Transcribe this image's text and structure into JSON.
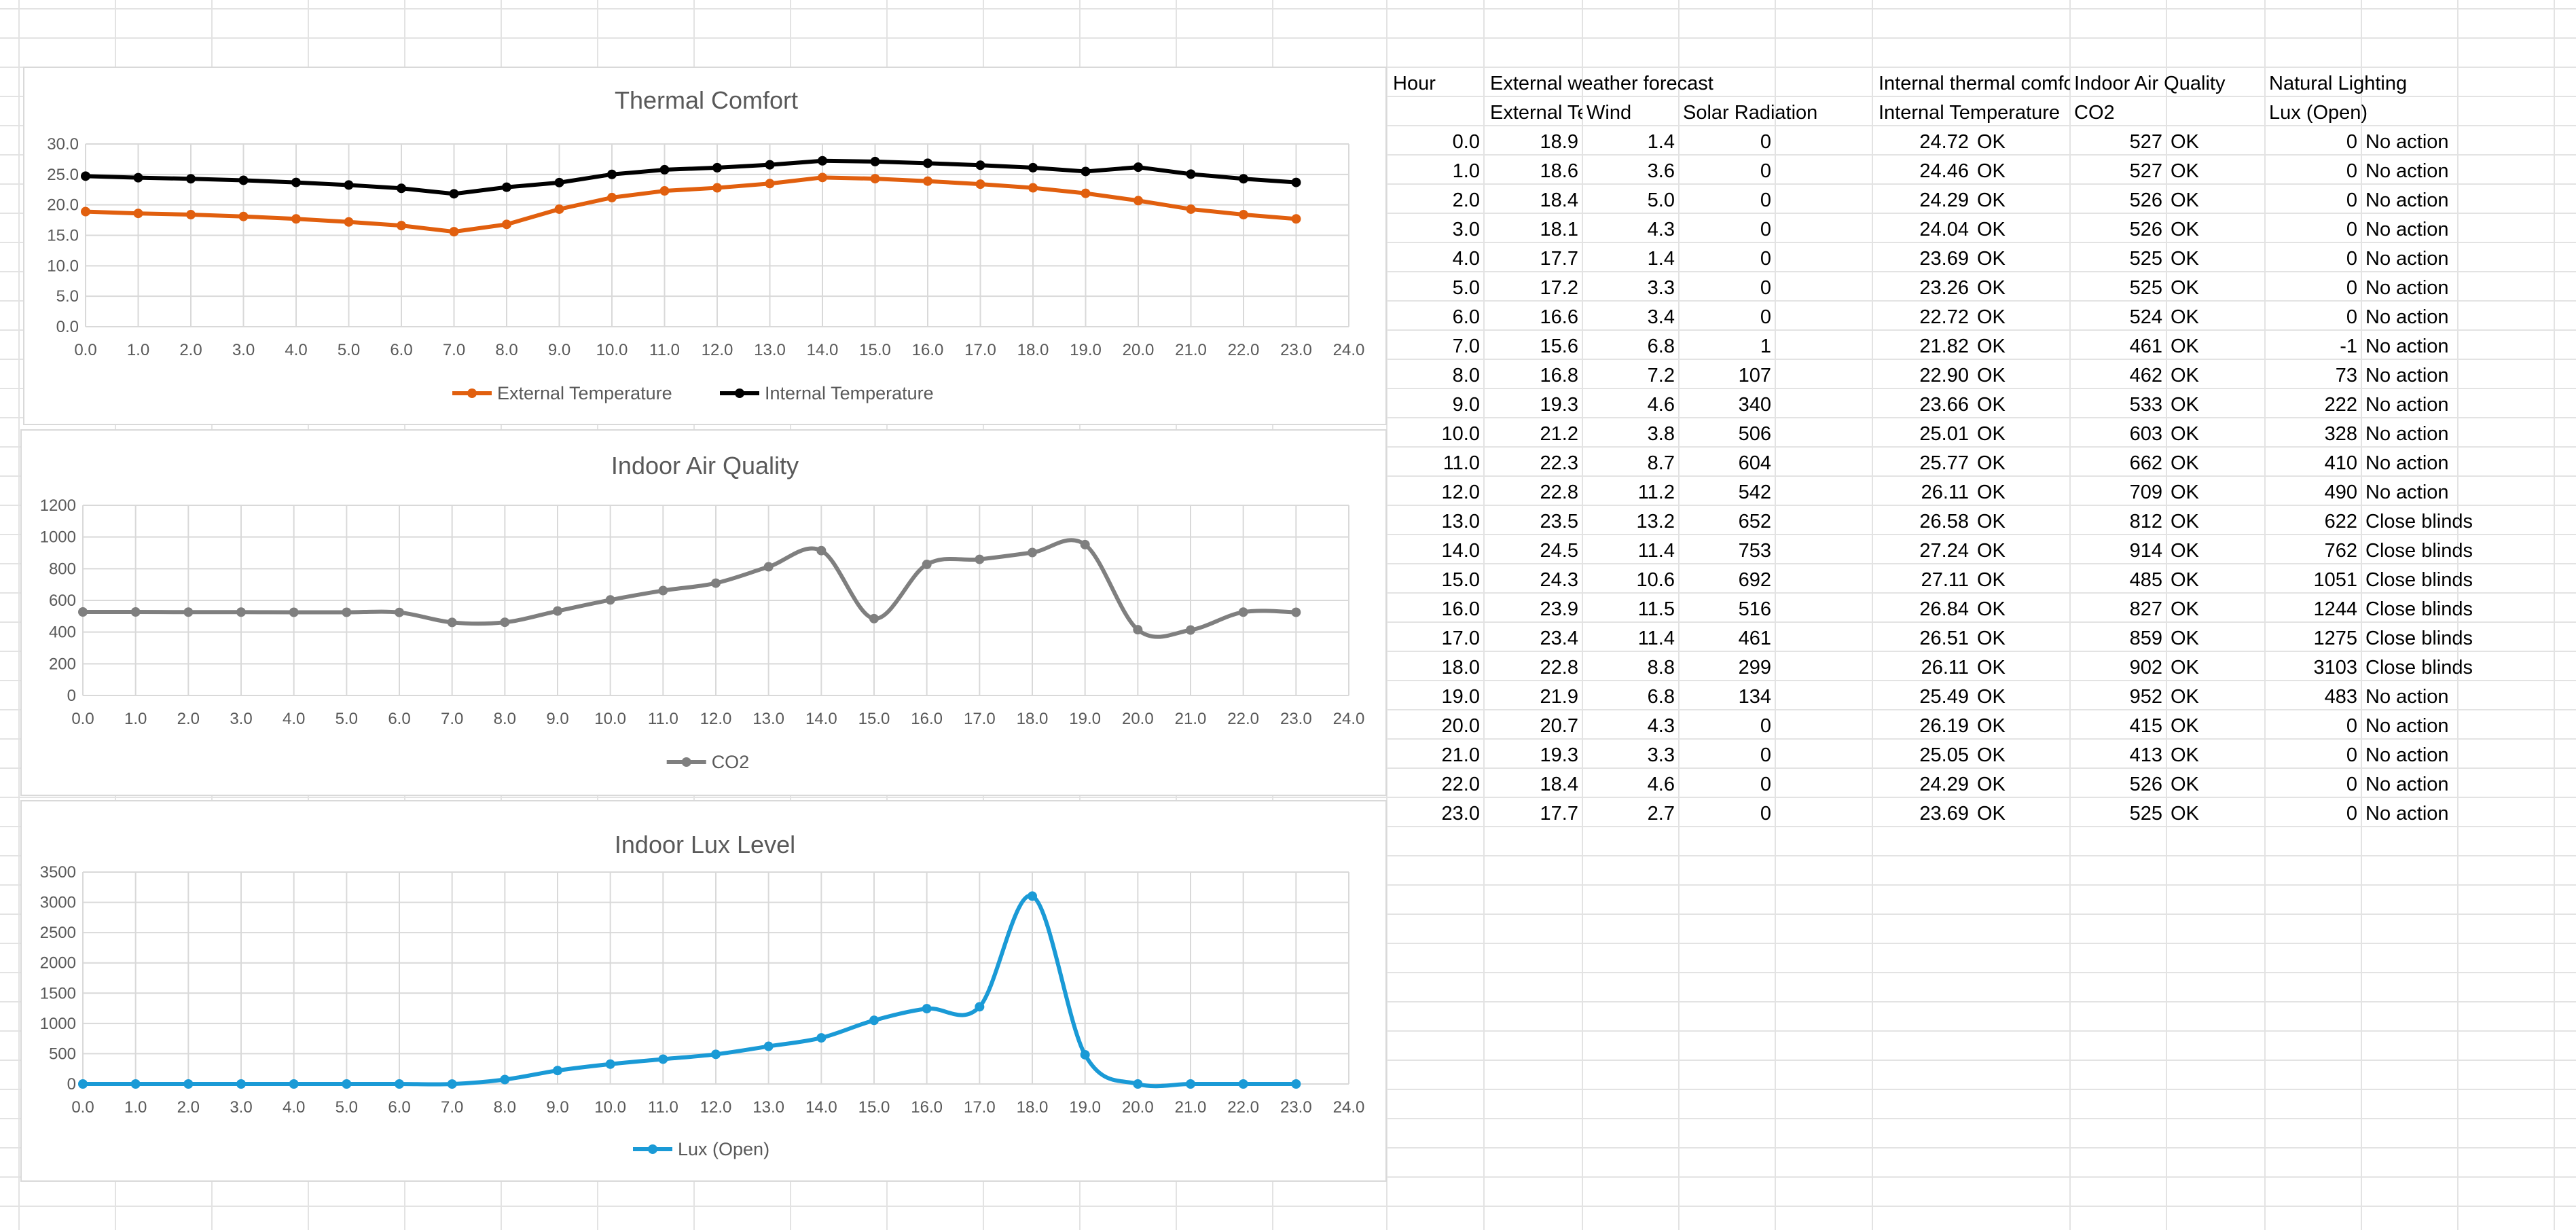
{
  "colors": {
    "external": "#e15f0e",
    "internal": "#000000",
    "co2": "#7f7f7f",
    "lux": "#1a9ad6",
    "gridline": "#d9d9d9"
  },
  "charts": {
    "thermal": {
      "title": "Thermal Comfort",
      "legend": [
        "External Temperature",
        "Internal Temperature"
      ]
    },
    "co2": {
      "title": "Indoor Air Quality",
      "legend": [
        "CO2"
      ]
    },
    "lux": {
      "title": "Indoor Lux Level",
      "legend": [
        "Lux (Open)"
      ]
    }
  },
  "chart_data": [
    {
      "type": "line",
      "title": "Thermal Comfort",
      "x": [
        0,
        1,
        2,
        3,
        4,
        5,
        6,
        7,
        8,
        9,
        10,
        11,
        12,
        13,
        14,
        15,
        16,
        17,
        18,
        19,
        20,
        21,
        22,
        23
      ],
      "x_ticks": [
        "0.0",
        "1.0",
        "2.0",
        "3.0",
        "4.0",
        "5.0",
        "6.0",
        "7.0",
        "8.0",
        "9.0",
        "10.0",
        "11.0",
        "12.0",
        "13.0",
        "14.0",
        "15.0",
        "16.0",
        "17.0",
        "18.0",
        "19.0",
        "20.0",
        "21.0",
        "22.0",
        "23.0",
        "24.0"
      ],
      "y_ticks": [
        "0.0",
        "5.0",
        "10.0",
        "15.0",
        "20.0",
        "25.0",
        "30.0"
      ],
      "xlim": [
        0,
        24
      ],
      "ylim": [
        0,
        30
      ],
      "smooth": false,
      "series": [
        {
          "name": "External Temperature",
          "values": [
            18.9,
            18.6,
            18.4,
            18.1,
            17.7,
            17.2,
            16.6,
            15.6,
            16.8,
            19.3,
            21.2,
            22.3,
            22.8,
            23.5,
            24.5,
            24.3,
            23.9,
            23.4,
            22.8,
            21.9,
            20.7,
            19.3,
            18.4,
            17.7
          ]
        },
        {
          "name": "Internal Temperature",
          "values": [
            24.72,
            24.46,
            24.29,
            24.04,
            23.69,
            23.26,
            22.72,
            21.82,
            22.9,
            23.66,
            25.01,
            25.77,
            26.11,
            26.58,
            27.24,
            27.11,
            26.84,
            26.51,
            26.11,
            25.49,
            26.19,
            25.05,
            24.29,
            23.69
          ]
        }
      ]
    },
    {
      "type": "line",
      "title": "Indoor Air Quality",
      "x": [
        0,
        1,
        2,
        3,
        4,
        5,
        6,
        7,
        8,
        9,
        10,
        11,
        12,
        13,
        14,
        15,
        16,
        17,
        18,
        19,
        20,
        21,
        22,
        23
      ],
      "x_ticks": [
        "0.0",
        "1.0",
        "2.0",
        "3.0",
        "4.0",
        "5.0",
        "6.0",
        "7.0",
        "8.0",
        "9.0",
        "10.0",
        "11.0",
        "12.0",
        "13.0",
        "14.0",
        "15.0",
        "16.0",
        "17.0",
        "18.0",
        "19.0",
        "20.0",
        "21.0",
        "22.0",
        "23.0",
        "24.0"
      ],
      "y_ticks": [
        "0",
        "200",
        "400",
        "600",
        "800",
        "1000",
        "1200"
      ],
      "xlim": [
        0,
        24
      ],
      "ylim": [
        0,
        1200
      ],
      "smooth": true,
      "series": [
        {
          "name": "CO2",
          "values": [
            527,
            527,
            526,
            526,
            525,
            525,
            524,
            461,
            462,
            533,
            603,
            662,
            709,
            812,
            914,
            485,
            827,
            859,
            902,
            952,
            415,
            413,
            526,
            525
          ]
        }
      ]
    },
    {
      "type": "line",
      "title": "Indoor Lux Level",
      "x": [
        0,
        1,
        2,
        3,
        4,
        5,
        6,
        7,
        8,
        9,
        10,
        11,
        12,
        13,
        14,
        15,
        16,
        17,
        18,
        19,
        20,
        21,
        22,
        23
      ],
      "x_ticks": [
        "0.0",
        "1.0",
        "2.0",
        "3.0",
        "4.0",
        "5.0",
        "6.0",
        "7.0",
        "8.0",
        "9.0",
        "10.0",
        "11.0",
        "12.0",
        "13.0",
        "14.0",
        "15.0",
        "16.0",
        "17.0",
        "18.0",
        "19.0",
        "20.0",
        "21.0",
        "22.0",
        "23.0",
        "24.0"
      ],
      "y_ticks": [
        "0",
        "500",
        "1000",
        "1500",
        "2000",
        "2500",
        "3000",
        "3500"
      ],
      "xlim": [
        0,
        24
      ],
      "ylim": [
        0,
        3500
      ],
      "smooth": true,
      "series": [
        {
          "name": "Lux (Open)",
          "values": [
            0,
            0,
            0,
            0,
            0,
            0,
            0,
            -1,
            73,
            222,
            328,
            410,
            490,
            622,
            762,
            1051,
            1244,
            1275,
            3103,
            483,
            0,
            0,
            0,
            0
          ]
        }
      ]
    }
  ],
  "sheet": {
    "header1": {
      "hour": "Hour",
      "external": "External weather forecast",
      "internal": "Internal thermal comfort",
      "air": "Indoor Air Quality",
      "lighting": "Natural Lighting"
    },
    "header2": {
      "ext_temp": "External Temperature",
      "wind": "Wind",
      "solar": "Solar Radiation",
      "int_temp": "Internal Temperature",
      "co2": "CO2",
      "lux": "Lux (Open)"
    },
    "rows": [
      {
        "hour": "0.0",
        "ext": "18.9",
        "wind": "1.4",
        "solar": "0",
        "int": "24.72",
        "int_status": "OK",
        "co2": "527",
        "co2_status": "OK",
        "lux": "0",
        "action": "No action"
      },
      {
        "hour": "1.0",
        "ext": "18.6",
        "wind": "3.6",
        "solar": "0",
        "int": "24.46",
        "int_status": "OK",
        "co2": "527",
        "co2_status": "OK",
        "lux": "0",
        "action": "No action"
      },
      {
        "hour": "2.0",
        "ext": "18.4",
        "wind": "5.0",
        "solar": "0",
        "int": "24.29",
        "int_status": "OK",
        "co2": "526",
        "co2_status": "OK",
        "lux": "0",
        "action": "No action"
      },
      {
        "hour": "3.0",
        "ext": "18.1",
        "wind": "4.3",
        "solar": "0",
        "int": "24.04",
        "int_status": "OK",
        "co2": "526",
        "co2_status": "OK",
        "lux": "0",
        "action": "No action"
      },
      {
        "hour": "4.0",
        "ext": "17.7",
        "wind": "1.4",
        "solar": "0",
        "int": "23.69",
        "int_status": "OK",
        "co2": "525",
        "co2_status": "OK",
        "lux": "0",
        "action": "No action"
      },
      {
        "hour": "5.0",
        "ext": "17.2",
        "wind": "3.3",
        "solar": "0",
        "int": "23.26",
        "int_status": "OK",
        "co2": "525",
        "co2_status": "OK",
        "lux": "0",
        "action": "No action"
      },
      {
        "hour": "6.0",
        "ext": "16.6",
        "wind": "3.4",
        "solar": "0",
        "int": "22.72",
        "int_status": "OK",
        "co2": "524",
        "co2_status": "OK",
        "lux": "0",
        "action": "No action"
      },
      {
        "hour": "7.0",
        "ext": "15.6",
        "wind": "6.8",
        "solar": "1",
        "int": "21.82",
        "int_status": "OK",
        "co2": "461",
        "co2_status": "OK",
        "lux": "-1",
        "action": "No action"
      },
      {
        "hour": "8.0",
        "ext": "16.8",
        "wind": "7.2",
        "solar": "107",
        "int": "22.90",
        "int_status": "OK",
        "co2": "462",
        "co2_status": "OK",
        "lux": "73",
        "action": "No action"
      },
      {
        "hour": "9.0",
        "ext": "19.3",
        "wind": "4.6",
        "solar": "340",
        "int": "23.66",
        "int_status": "OK",
        "co2": "533",
        "co2_status": "OK",
        "lux": "222",
        "action": "No action"
      },
      {
        "hour": "10.0",
        "ext": "21.2",
        "wind": "3.8",
        "solar": "506",
        "int": "25.01",
        "int_status": "OK",
        "co2": "603",
        "co2_status": "OK",
        "lux": "328",
        "action": "No action"
      },
      {
        "hour": "11.0",
        "ext": "22.3",
        "wind": "8.7",
        "solar": "604",
        "int": "25.77",
        "int_status": "OK",
        "co2": "662",
        "co2_status": "OK",
        "lux": "410",
        "action": "No action"
      },
      {
        "hour": "12.0",
        "ext": "22.8",
        "wind": "11.2",
        "solar": "542",
        "int": "26.11",
        "int_status": "OK",
        "co2": "709",
        "co2_status": "OK",
        "lux": "490",
        "action": "No action"
      },
      {
        "hour": "13.0",
        "ext": "23.5",
        "wind": "13.2",
        "solar": "652",
        "int": "26.58",
        "int_status": "OK",
        "co2": "812",
        "co2_status": "OK",
        "lux": "622",
        "action": "Close blinds"
      },
      {
        "hour": "14.0",
        "ext": "24.5",
        "wind": "11.4",
        "solar": "753",
        "int": "27.24",
        "int_status": "OK",
        "co2": "914",
        "co2_status": "OK",
        "lux": "762",
        "action": "Close blinds"
      },
      {
        "hour": "15.0",
        "ext": "24.3",
        "wind": "10.6",
        "solar": "692",
        "int": "27.11",
        "int_status": "OK",
        "co2": "485",
        "co2_status": "OK",
        "lux": "1051",
        "action": "Close blinds"
      },
      {
        "hour": "16.0",
        "ext": "23.9",
        "wind": "11.5",
        "solar": "516",
        "int": "26.84",
        "int_status": "OK",
        "co2": "827",
        "co2_status": "OK",
        "lux": "1244",
        "action": "Close blinds"
      },
      {
        "hour": "17.0",
        "ext": "23.4",
        "wind": "11.4",
        "solar": "461",
        "int": "26.51",
        "int_status": "OK",
        "co2": "859",
        "co2_status": "OK",
        "lux": "1275",
        "action": "Close blinds"
      },
      {
        "hour": "18.0",
        "ext": "22.8",
        "wind": "8.8",
        "solar": "299",
        "int": "26.11",
        "int_status": "OK",
        "co2": "902",
        "co2_status": "OK",
        "lux": "3103",
        "action": "Close blinds"
      },
      {
        "hour": "19.0",
        "ext": "21.9",
        "wind": "6.8",
        "solar": "134",
        "int": "25.49",
        "int_status": "OK",
        "co2": "952",
        "co2_status": "OK",
        "lux": "483",
        "action": "No action"
      },
      {
        "hour": "20.0",
        "ext": "20.7",
        "wind": "4.3",
        "solar": "0",
        "int": "26.19",
        "int_status": "OK",
        "co2": "415",
        "co2_status": "OK",
        "lux": "0",
        "action": "No action"
      },
      {
        "hour": "21.0",
        "ext": "19.3",
        "wind": "3.3",
        "solar": "0",
        "int": "25.05",
        "int_status": "OK",
        "co2": "413",
        "co2_status": "OK",
        "lux": "0",
        "action": "No action"
      },
      {
        "hour": "22.0",
        "ext": "18.4",
        "wind": "4.6",
        "solar": "0",
        "int": "24.29",
        "int_status": "OK",
        "co2": "526",
        "co2_status": "OK",
        "lux": "0",
        "action": "No action"
      },
      {
        "hour": "23.0",
        "ext": "17.7",
        "wind": "2.7",
        "solar": "0",
        "int": "23.69",
        "int_status": "OK",
        "co2": "525",
        "co2_status": "OK",
        "lux": "0",
        "action": "No action"
      }
    ]
  }
}
